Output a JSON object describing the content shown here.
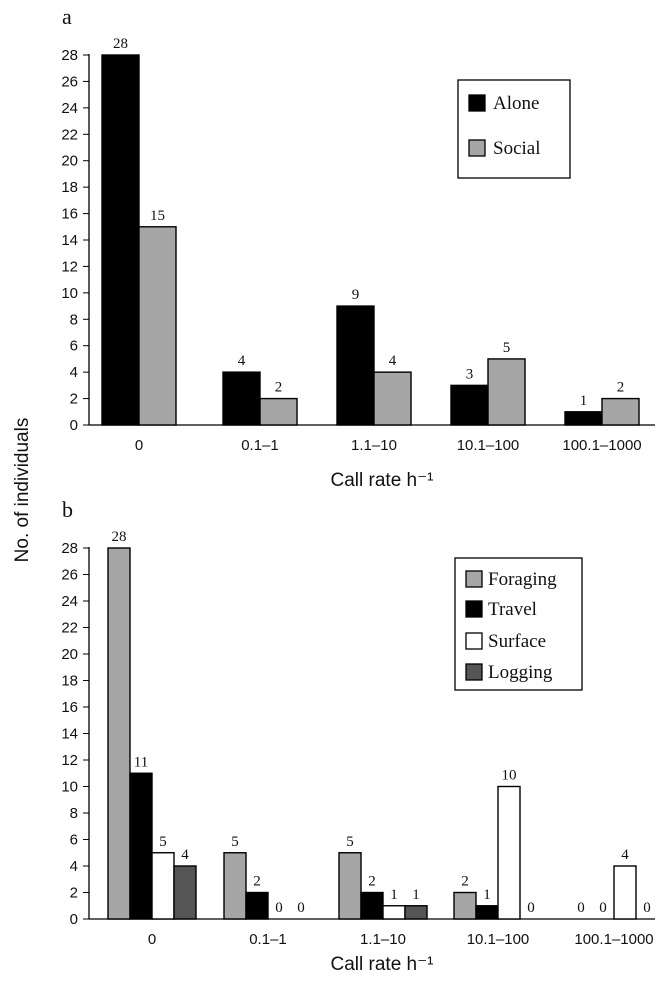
{
  "chart_data": [
    {
      "type": "bar",
      "panel": "a",
      "title": "",
      "xlabel": "Call rate h⁻¹",
      "ylabel": "No. of individuals",
      "ylim": [
        0,
        28
      ],
      "yticks": [
        "0",
        "2",
        "4",
        "6",
        "8",
        "10",
        "12",
        "14",
        "16",
        "18",
        "20",
        "22",
        "24",
        "26",
        "28"
      ],
      "categories": [
        "0",
        "0.1–1",
        "1.1–10",
        "10.1–100",
        "100.1–1000"
      ],
      "series": [
        {
          "name": "Alone",
          "color": "#000000",
          "values": [
            28,
            4,
            9,
            3,
            1
          ]
        },
        {
          "name": "Social",
          "color": "#a6a6a6",
          "values": [
            15,
            2,
            4,
            5,
            2
          ]
        }
      ],
      "legend_position": "top-right",
      "grid": false
    },
    {
      "type": "bar",
      "panel": "b",
      "title": "",
      "xlabel": "Call rate h⁻¹",
      "ylabel": "No. of individuals",
      "ylim": [
        0,
        28
      ],
      "yticks": [
        "0",
        "2",
        "4",
        "6",
        "8",
        "10",
        "12",
        "14",
        "16",
        "18",
        "20",
        "22",
        "24",
        "26",
        "28"
      ],
      "categories": [
        "0",
        "0.1–1",
        "1.1–10",
        "10.1–100",
        "100.1–1000"
      ],
      "series": [
        {
          "name": "Foraging",
          "color": "#a6a6a6",
          "values": [
            28,
            5,
            5,
            2,
            0
          ]
        },
        {
          "name": "Travel",
          "color": "#000000",
          "values": [
            11,
            2,
            2,
            1,
            0
          ]
        },
        {
          "name": "Surface",
          "color": "#ffffff",
          "values": [
            5,
            0,
            1,
            10,
            4
          ]
        },
        {
          "name": "Logging",
          "color": "#555555",
          "values": [
            4,
            0,
            1,
            0,
            0
          ]
        }
      ],
      "legend_position": "top-right",
      "grid": false
    }
  ],
  "shared_ylabel": "No. of individuals"
}
